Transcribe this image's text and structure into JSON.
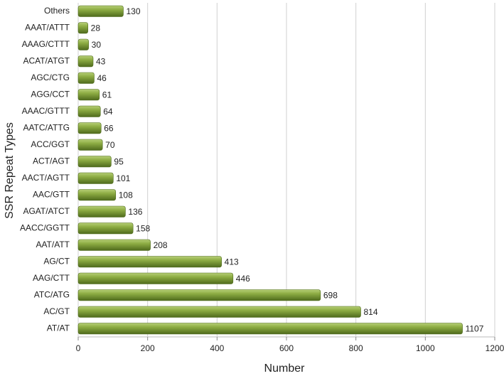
{
  "chart_data": {
    "type": "bar",
    "orientation": "horizontal",
    "x_label": "Number",
    "y_label": "SSR Repeat Types",
    "categories": [
      "Others",
      "AAAT/ATTT",
      "AAAG/CTTT",
      "ACAT/ATGT",
      "AGC/CTG",
      "AGG/CCT",
      "AAAC/GTTT",
      "AATC/ATTG",
      "ACC/GGT",
      "ACT/AGT",
      "AACT/AGTT",
      "AAC/GTT",
      "AGAT/ATCT",
      "AACC/GGTT",
      "AAT/ATT",
      "AG/CT",
      "AAG/CTT",
      "ATC/ATG",
      "AC/GT",
      "AT/AT"
    ],
    "values": [
      130,
      28,
      30,
      43,
      46,
      61,
      64,
      66,
      70,
      95,
      101,
      108,
      136,
      158,
      208,
      413,
      446,
      698,
      814,
      1107
    ],
    "color": "#6f8f2e",
    "xlim": [
      0,
      1200
    ],
    "xticks": [
      0,
      200,
      400,
      600,
      800,
      1000,
      1200
    ],
    "grid": true
  }
}
